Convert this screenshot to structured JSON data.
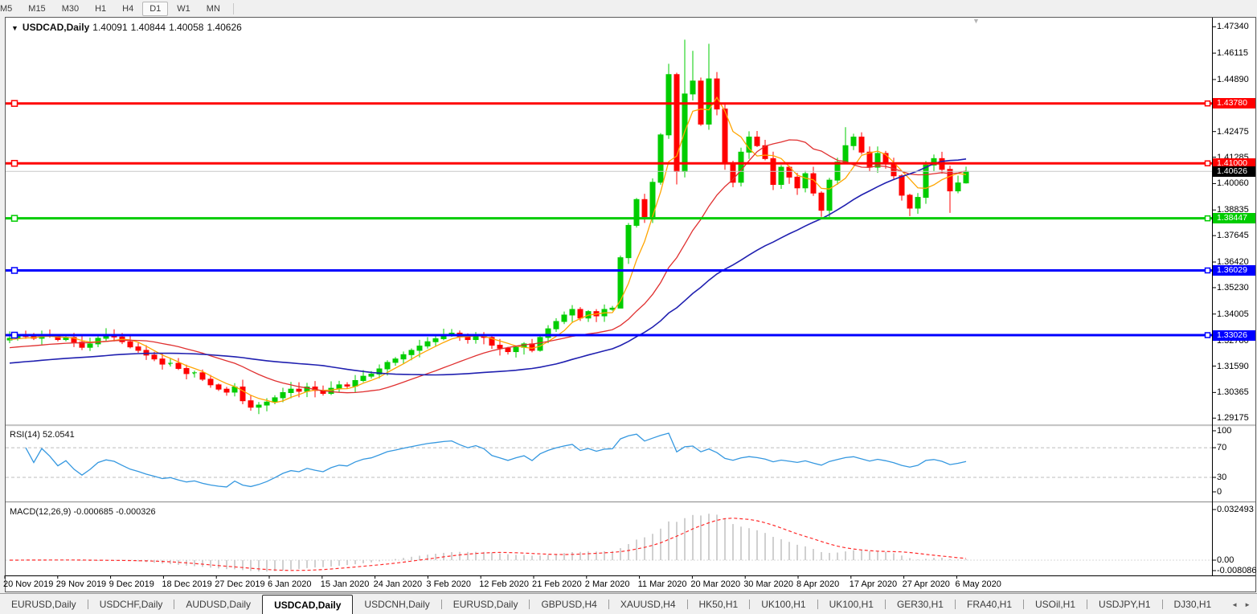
{
  "toolbar": {
    "timeframes": [
      "M5",
      "M15",
      "M30",
      "H1",
      "H4",
      "D1",
      "W1",
      "MN"
    ],
    "active": "D1"
  },
  "chart_header": {
    "dropdown_glyph": "▼",
    "symbol": "USDCAD,Daily",
    "open": "1.40091",
    "high": "1.40844",
    "low": "1.40058",
    "close": "1.40626"
  },
  "shift_marker_glyph": "▼",
  "chart_data": {
    "type": "candlestick",
    "symbol": "USDCAD",
    "timeframe": "Daily",
    "x_labels": [
      "20 Nov 2019",
      "29 Nov 2019",
      "9 Dec 2019",
      "18 Dec 2019",
      "27 Dec 2019",
      "6 Jan 2020",
      "15 Jan 2020",
      "24 Jan 2020",
      "3 Feb 2020",
      "12 Feb 2020",
      "21 Feb 2020",
      "2 Mar 2020",
      "11 Mar 2020",
      "20 Mar 2020",
      "30 Mar 2020",
      "8 Apr 2020",
      "17 Apr 2020",
      "27 Apr 2020",
      "6 May 2020"
    ],
    "y_axis_labels": [
      {
        "text": "1.47340",
        "price": 1.4734
      },
      {
        "text": "1.46115",
        "price": 1.46115
      },
      {
        "text": "1.44890",
        "price": 1.4489
      },
      {
        "text": "1.42475",
        "price": 1.42475
      },
      {
        "text": "1.41285",
        "price": 1.41285
      },
      {
        "text": "1.40060",
        "price": 1.4006
      },
      {
        "text": "1.38835",
        "price": 1.38835
      },
      {
        "text": "1.37645",
        "price": 1.37645
      },
      {
        "text": "1.36420",
        "price": 1.3642
      },
      {
        "text": "1.35230",
        "price": 1.3523
      },
      {
        "text": "1.34005",
        "price": 1.34005
      },
      {
        "text": "1.32780",
        "price": 1.3278
      },
      {
        "text": "1.31590",
        "price": 1.3159
      },
      {
        "text": "1.30365",
        "price": 1.30365
      },
      {
        "text": "1.29175",
        "price": 1.29175
      }
    ],
    "ylim": [
      1.29175,
      1.4734
    ],
    "first_open": 1.328,
    "closes": [
      1.3288,
      1.3302,
      1.3296,
      1.3288,
      1.3305,
      1.3297,
      1.3282,
      1.3292,
      1.327,
      1.3246,
      1.3262,
      1.3288,
      1.3301,
      1.3294,
      1.3272,
      1.3248,
      1.3232,
      1.321,
      1.3192,
      1.3168,
      1.3172,
      1.3148,
      1.3124,
      1.3128,
      1.3098,
      1.3072,
      1.3052,
      1.3038,
      1.3062,
      1.2998,
      1.2968,
      1.2978,
      1.2992,
      1.3012,
      1.3036,
      1.3052,
      1.3042,
      1.3062,
      1.3046,
      1.3032,
      1.3056,
      1.3072,
      1.3066,
      1.3092,
      1.3112,
      1.3122,
      1.3146,
      1.3176,
      1.3192,
      1.3212,
      1.3232,
      1.3252,
      1.3272,
      1.3286,
      1.3302,
      1.3312,
      1.3296,
      1.3282,
      1.3306,
      1.3292,
      1.3256,
      1.3242,
      1.3226,
      1.3246,
      1.3262,
      1.3232,
      1.3292,
      1.3332,
      1.3366,
      1.3396,
      1.3422,
      1.3382,
      1.3412,
      1.3392,
      1.3422,
      1.3428,
      1.3662,
      1.3812,
      1.3932,
      1.3852,
      1.4012,
      1.4232,
      1.4512,
      1.4062,
      1.4422,
      1.4482,
      1.4282,
      1.4492,
      1.4352,
      1.4102,
      1.4012,
      1.4152,
      1.4222,
      1.4182,
      1.4122,
      1.4002,
      1.4082,
      1.4036,
      1.3986,
      1.4052,
      1.3962,
      1.3882,
      1.4022,
      1.4106,
      1.4182,
      1.4222,
      1.4152,
      1.4082,
      1.4146,
      1.4102,
      1.4042,
      1.3952,
      1.3892,
      1.3942,
      1.4092,
      1.4122,
      1.4072,
      1.3972,
      1.4009,
      1.40626
    ],
    "wick_overrides": {
      "30": {
        "l": 1.2952
      },
      "76": {
        "h": 1.3672,
        "l": 1.343
      },
      "82": {
        "h": 1.4562
      },
      "83": {
        "l": 1.4002
      },
      "84": {
        "h": 1.4674
      },
      "85": {
        "h": 1.4622
      },
      "87": {
        "h": 1.4655
      },
      "101": {
        "l": 1.3852
      },
      "104": {
        "h": 1.4268
      },
      "112": {
        "l": 1.3855
      },
      "117": {
        "l": 1.387
      },
      "119": {
        "h": 1.40844,
        "l": 1.40058
      }
    },
    "colors": {
      "up": "#00cd00",
      "down": "#ff0000",
      "current_line": "#c8c8c8",
      "current_tag_bg": "#000000",
      "rsi_line": "#3598e0",
      "rsi_level_line": "#bcbcbc",
      "macd_hist": "#c4c4c4",
      "macd_signal": "#ff2a2a"
    },
    "moving_averages": [
      {
        "name": "ma-fast",
        "period": 5,
        "color": "#ffa500",
        "seed": 1.328
      },
      {
        "name": "ma-medium",
        "period": 18,
        "color": "#e03030",
        "seed": 1.3242
      },
      {
        "name": "ma-slow",
        "period": 40,
        "color": "#2020b0",
        "seed": 1.317
      }
    ],
    "h_lines": [
      {
        "price": 1.4378,
        "label": "1.43780",
        "color": "#ff0000"
      },
      {
        "price": 1.41,
        "label": "1.41000",
        "color": "#ff0000"
      },
      {
        "price": 1.38447,
        "label": "1.38447",
        "color": "#00cc00"
      },
      {
        "price": 1.36029,
        "label": "1.36029",
        "color": "#0000ff"
      },
      {
        "price": 1.33026,
        "label": "1.33026",
        "color": "#0000ff"
      }
    ],
    "current_price": {
      "text": "1.40626",
      "price": 1.40626
    },
    "rsi": {
      "label": "RSI(14) 52.0541",
      "period": 14,
      "current": 52.0541,
      "scale_labels": [
        {
          "text": "100",
          "value": 100
        },
        {
          "text": "70",
          "value": 70
        },
        {
          "text": "30",
          "value": 30
        },
        {
          "text": "0",
          "value": 0
        }
      ],
      "dashed_levels": [
        70,
        30
      ]
    },
    "macd": {
      "label": "MACD(12,26,9) -0.000685 -0.000326",
      "fast": 12,
      "slow": 26,
      "signal": 9,
      "macd_value": -0.000685,
      "signal_value": -0.000326,
      "scale_labels": [
        {
          "text": "0.032493",
          "value": 0.032493
        },
        {
          "text": "0.00",
          "value": 0
        },
        {
          "text": "-0.008086",
          "value": -0.008086
        }
      ]
    }
  },
  "tabs": {
    "items": [
      "EURUSD,Daily",
      "USDCHF,Daily",
      "AUDUSD,Daily",
      "USDCAD,Daily",
      "USDCNH,Daily",
      "EURUSD,Daily",
      "GBPUSD,H4",
      "XAUUSD,H4",
      "HK50,H1",
      "UK100,H1",
      "UK100,H1",
      "GER30,H1",
      "FRA40,H1",
      "USOil,H1",
      "USDJPY,H1",
      "DJ30,H1"
    ],
    "active_index": 3,
    "arrow_left": "◄",
    "arrow_right": "►"
  }
}
